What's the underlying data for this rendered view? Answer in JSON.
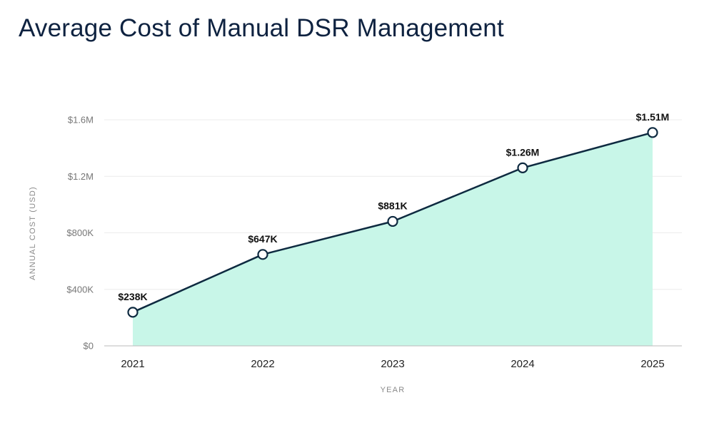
{
  "chart_data": {
    "type": "area",
    "title": "Average Cost of Manual DSR Management",
    "xlabel": "YEAR",
    "ylabel": "ANNUAL COST (USD)",
    "categories": [
      "2021",
      "2022",
      "2023",
      "2024",
      "2025"
    ],
    "values": [
      238000,
      647000,
      881000,
      1260000,
      1510000
    ],
    "data_labels": [
      "$238K",
      "$647K",
      "$881K",
      "$1.26M",
      "$1.51M"
    ],
    "ylim": [
      0,
      1600000
    ],
    "y_ticks": [
      {
        "value": 0,
        "label": "$0"
      },
      {
        "value": 400000,
        "label": "$400K"
      },
      {
        "value": 800000,
        "label": "$800K"
      },
      {
        "value": 1200000,
        "label": "$1.2M"
      },
      {
        "value": 1600000,
        "label": "$1.6M"
      }
    ],
    "grid": true,
    "colors": {
      "line": "#0e2a40",
      "fill": "#c8f6e8",
      "marker_fill": "#ffffff",
      "grid": "#ececec",
      "baseline": "#bbbbbb"
    }
  }
}
